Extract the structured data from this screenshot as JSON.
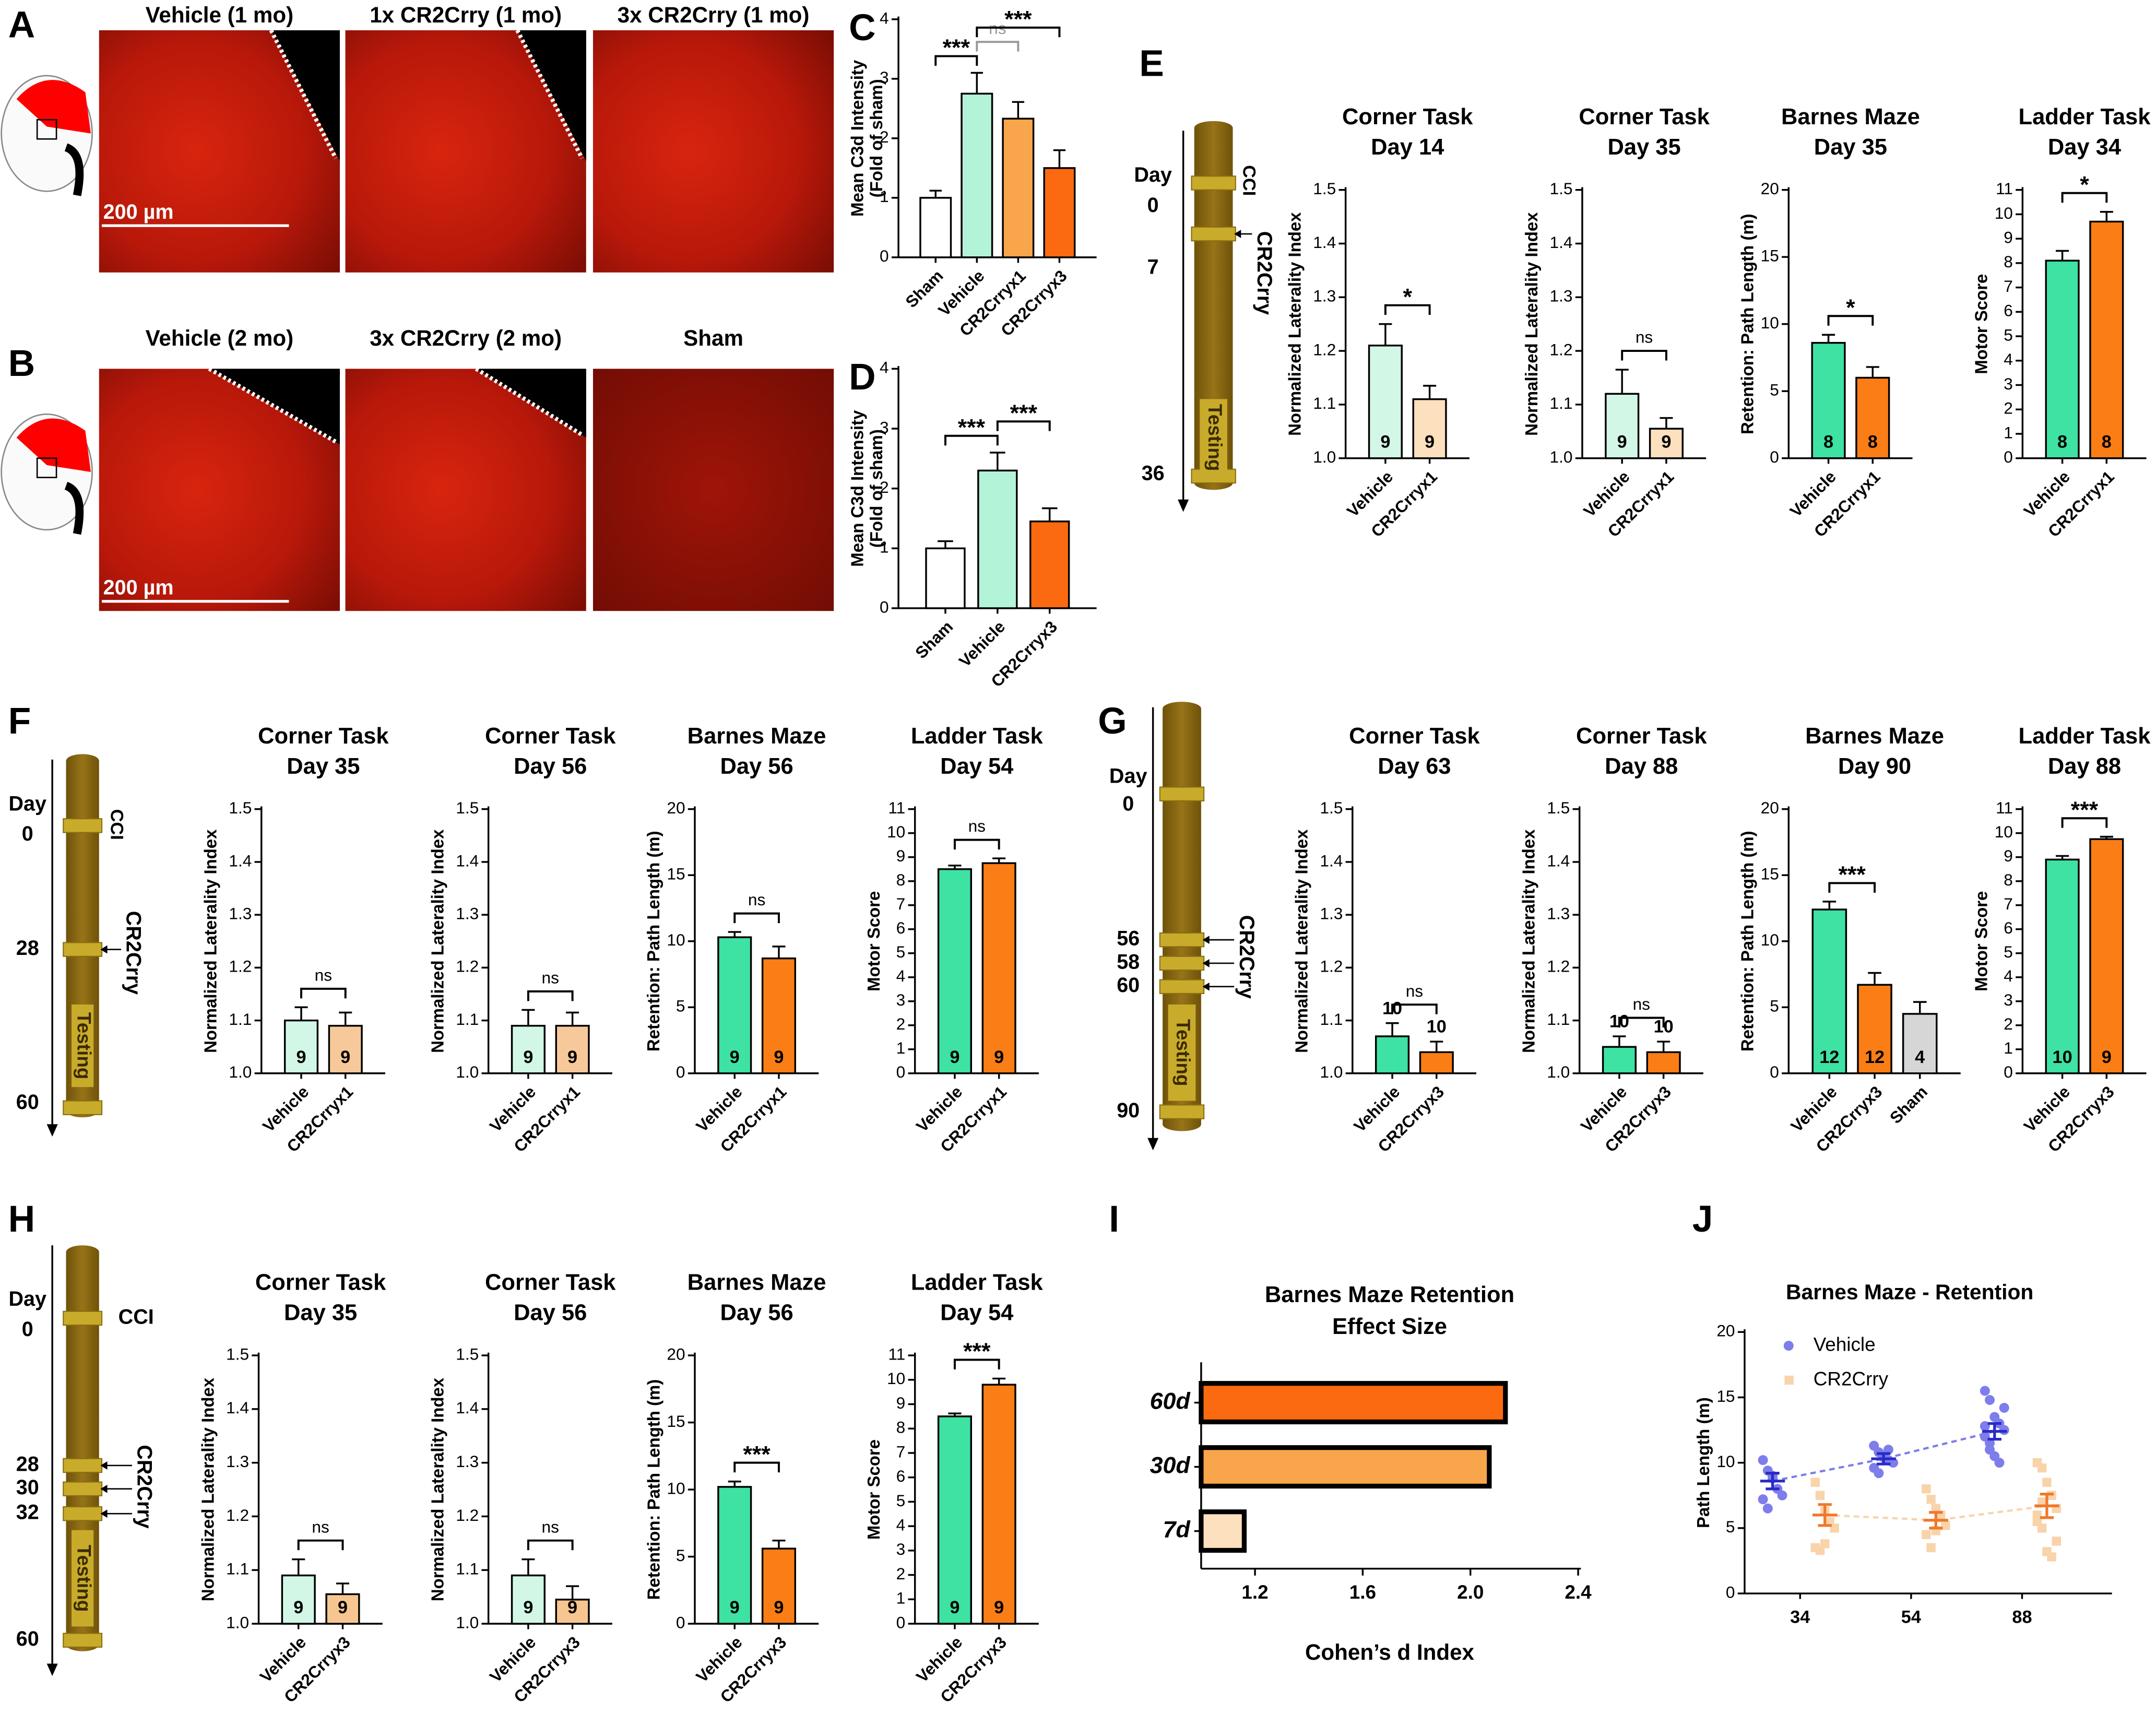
{
  "panel_labels": [
    "A",
    "B",
    "C",
    "D",
    "E",
    "F",
    "G",
    "H",
    "I",
    "J"
  ],
  "images": [
    {
      "labels": [
        "Vehicle (1 mo)",
        "1x CR2Crry (1 mo)",
        "3x CR2Crry (1 mo)"
      ],
      "scale_bar": "200 µm"
    },
    {
      "labels": [
        "Vehicle (2 mo)",
        "3x CR2Crry (2 mo)",
        "Sham"
      ],
      "scale_bar": "200 µm"
    }
  ],
  "timelines": [
    {
      "day_word": "Day",
      "days": [
        "0",
        "7",
        "36"
      ],
      "cci": "CCI",
      "treatment": "CR2Crry",
      "testing": "Testing"
    },
    {
      "day_word": "Day",
      "days": [
        "0",
        "28",
        "60"
      ],
      "cci": "CCI",
      "treatment": "CR2Crry",
      "testing": "Testing"
    },
    {
      "day_word": "Day",
      "days": [
        "0",
        "56",
        "58",
        "60",
        "90"
      ],
      "treatment": "CR2Crry",
      "testing": "Testing"
    },
    {
      "day_word": "Day",
      "days": [
        "0",
        "28",
        "30",
        "32",
        "60"
      ],
      "cci": "CCI",
      "treatment": "CR2Crry",
      "testing": "Testing"
    }
  ],
  "chart_data": [
    {
      "type": "bar",
      "ylabel": [
        "Mean C3d Intensity",
        "(Fold of sham)"
      ],
      "categories": [
        "Sham",
        "Vehicle",
        "CR2Crryx1",
        "CR2Crryx3"
      ],
      "values": [
        1.0,
        2.75,
        2.33,
        1.5
      ],
      "errors": [
        0.12,
        0.35,
        0.28,
        0.3
      ],
      "colors": [
        "#ffffff",
        "#b3f3d8",
        "#f9a54b",
        "#fb6a10"
      ],
      "comparisons": [
        {
          "pair": [
            0,
            1
          ],
          "label": "***"
        },
        {
          "pair": [
            1,
            2
          ],
          "label": "ns",
          "color": "#999999"
        },
        {
          "pair": [
            1,
            3
          ],
          "label": "***"
        }
      ],
      "ylim": [
        0,
        4
      ],
      "yticks": [
        0,
        1,
        2,
        3,
        4
      ]
    },
    {
      "type": "bar",
      "ylabel": [
        "Mean C3d Intensity",
        "(Fold of sham)"
      ],
      "categories": [
        "Sham",
        "Vehicle",
        "CR2Crryx3"
      ],
      "values": [
        1.0,
        2.3,
        1.45
      ],
      "errors": [
        0.12,
        0.3,
        0.22
      ],
      "colors": [
        "#ffffff",
        "#b3f3d8",
        "#fb6a10"
      ],
      "comparisons": [
        {
          "pair": [
            0,
            1
          ],
          "label": "***"
        },
        {
          "pair": [
            1,
            2
          ],
          "label": "***"
        }
      ],
      "ylim": [
        0,
        4
      ],
      "yticks": [
        0,
        1,
        2,
        3,
        4
      ]
    },
    {
      "type": "bar",
      "title": [
        "Corner Task",
        "Day 14"
      ],
      "ylabel": [
        "Normalized Laterality Index"
      ],
      "categories": [
        "Vehicle",
        "CR2Crryx1"
      ],
      "values": [
        1.21,
        1.11
      ],
      "errors": [
        0.04,
        0.025
      ],
      "n": [
        9,
        9
      ],
      "colors": [
        "#d2f7e6",
        "#fde0bd"
      ],
      "comparisons": [
        {
          "pair": [
            0,
            1
          ],
          "label": "*"
        }
      ],
      "ylim": [
        1,
        1.5
      ],
      "yticks": [
        {
          "value": 1,
          "label": "1.0"
        },
        1.1,
        1.2,
        1.3,
        1.4,
        1.5
      ]
    },
    {
      "type": "bar",
      "title": [
        "Corner Task",
        "Day 35"
      ],
      "ylabel": [
        "Normalized Laterality Index"
      ],
      "categories": [
        "Vehicle",
        "CR2Crryx1"
      ],
      "values": [
        1.12,
        1.055
      ],
      "errors": [
        0.045,
        0.02
      ],
      "n": [
        9,
        9
      ],
      "colors": [
        "#d2f7e6",
        "#fde0bd"
      ],
      "comparisons": [
        {
          "pair": [
            0,
            1
          ],
          "label": "ns"
        }
      ],
      "ylim": [
        1,
        1.5
      ],
      "yticks": [
        {
          "value": 1,
          "label": "1.0"
        },
        1.1,
        1.2,
        1.3,
        1.4,
        1.5
      ]
    },
    {
      "type": "bar",
      "title": [
        "Barnes Maze",
        "Day 35"
      ],
      "ylabel": [
        "Retention: Path Length (m)"
      ],
      "categories": [
        "Vehicle",
        "CR2Crryx1"
      ],
      "values": [
        8.6,
        6.0
      ],
      "errors": [
        0.6,
        0.8
      ],
      "n": [
        8,
        8
      ],
      "colors": [
        "#3ee2a3",
        "#fb7d16"
      ],
      "comparisons": [
        {
          "pair": [
            0,
            1
          ],
          "label": "*"
        }
      ],
      "ylim": [
        0,
        20
      ],
      "yticks": [
        0,
        5,
        10,
        15,
        20
      ]
    },
    {
      "type": "bar",
      "title": [
        "Ladder Task",
        "Day 34"
      ],
      "ylabel": [
        "Motor Score"
      ],
      "categories": [
        "Vehicle",
        "CR2Crryx1"
      ],
      "values": [
        8.1,
        9.7
      ],
      "errors": [
        0.4,
        0.4
      ],
      "n": [
        8,
        8
      ],
      "colors": [
        "#3ee2a3",
        "#fb7d16"
      ],
      "comparisons": [
        {
          "pair": [
            0,
            1
          ],
          "label": "*"
        }
      ],
      "ylim": [
        0,
        11
      ],
      "yticks": [
        0,
        1,
        2,
        3,
        4,
        5,
        6,
        7,
        8,
        9,
        10,
        11
      ]
    },
    {
      "type": "bar",
      "title": [
        "Corner Task",
        "Day 35"
      ],
      "ylabel": [
        "Normalized Laterality Index"
      ],
      "categories": [
        "Vehicle",
        "CR2Crryx1"
      ],
      "values": [
        1.1,
        1.09
      ],
      "errors": [
        0.025,
        0.025
      ],
      "n": [
        9,
        9
      ],
      "colors": [
        "#d2f7e6",
        "#f7c99a"
      ],
      "comparisons": [
        {
          "pair": [
            0,
            1
          ],
          "label": "ns"
        }
      ],
      "ylim": [
        1,
        1.5
      ],
      "yticks": [
        {
          "value": 1,
          "label": "1.0"
        },
        1.1,
        1.2,
        1.3,
        1.4,
        1.5
      ]
    },
    {
      "type": "bar",
      "title": [
        "Corner Task",
        "Day 56"
      ],
      "ylabel": [
        "Normalized Laterality Index"
      ],
      "categories": [
        "Vehicle",
        "CR2Crryx1"
      ],
      "values": [
        1.09,
        1.09
      ],
      "errors": [
        0.03,
        0.025
      ],
      "n": [
        9,
        9
      ],
      "colors": [
        "#d2f7e6",
        "#f7c99a"
      ],
      "comparisons": [
        {
          "pair": [
            0,
            1
          ],
          "label": "ns"
        }
      ],
      "ylim": [
        1,
        1.5
      ],
      "yticks": [
        {
          "value": 1,
          "label": "1.0"
        },
        1.1,
        1.2,
        1.3,
        1.4,
        1.5
      ]
    },
    {
      "type": "bar",
      "title": [
        "Barnes Maze",
        "Day 56"
      ],
      "ylabel": [
        "Retention: Path Length (m)"
      ],
      "categories": [
        "Vehicle",
        "CR2Crryx1"
      ],
      "values": [
        10.3,
        8.7
      ],
      "errors": [
        0.4,
        0.9
      ],
      "n": [
        9,
        9
      ],
      "colors": [
        "#3ee2a3",
        "#fb7d16"
      ],
      "comparisons": [
        {
          "pair": [
            0,
            1
          ],
          "label": "ns"
        }
      ],
      "ylim": [
        0,
        20
      ],
      "yticks": [
        0,
        5,
        10,
        15,
        20
      ]
    },
    {
      "type": "bar",
      "title": [
        "Ladder Task",
        "Day 54"
      ],
      "ylabel": [
        "Motor Score"
      ],
      "categories": [
        "Vehicle",
        "CR2Crryx1"
      ],
      "values": [
        8.5,
        8.75
      ],
      "errors": [
        0.15,
        0.2
      ],
      "n": [
        9,
        9
      ],
      "colors": [
        "#3ee2a3",
        "#fb7d16"
      ],
      "comparisons": [
        {
          "pair": [
            0,
            1
          ],
          "label": "ns"
        }
      ],
      "ylim": [
        0,
        11
      ],
      "yticks": [
        0,
        1,
        2,
        3,
        4,
        5,
        6,
        7,
        8,
        9,
        10,
        11
      ]
    },
    {
      "type": "bar",
      "title": [
        "Corner Task",
        "Day 63"
      ],
      "ylabel": [
        "Normalized Laterality Index"
      ],
      "categories": [
        "Vehicle",
        "CR2Crryx3"
      ],
      "values": [
        1.07,
        1.04
      ],
      "errors": [
        0.025,
        0.02
      ],
      "n": [
        10,
        10
      ],
      "n_position": "above",
      "colors": [
        "#3ee2a3",
        "#fb7d16"
      ],
      "comparisons": [
        {
          "pair": [
            0,
            1
          ],
          "label": "ns"
        }
      ],
      "ylim": [
        1,
        1.5
      ],
      "yticks": [
        {
          "value": 1,
          "label": "1.0"
        },
        1.1,
        1.2,
        1.3,
        1.4,
        1.5
      ]
    },
    {
      "type": "bar",
      "title": [
        "Corner Task",
        "Day 88"
      ],
      "ylabel": [
        "Normalized Laterality Index"
      ],
      "categories": [
        "Vehicle",
        "CR2Crryx3"
      ],
      "values": [
        1.05,
        1.04
      ],
      "errors": [
        0.02,
        0.02
      ],
      "n": [
        10,
        10
      ],
      "n_position": "above",
      "colors": [
        "#3ee2a3",
        "#fb7d16"
      ],
      "comparisons": [
        {
          "pair": [
            0,
            1
          ],
          "label": "ns"
        }
      ],
      "ylim": [
        1,
        1.5
      ],
      "yticks": [
        {
          "value": 1,
          "label": "1.0"
        },
        1.1,
        1.2,
        1.3,
        1.4,
        1.5
      ]
    },
    {
      "type": "bar",
      "title": [
        "Barnes Maze",
        "Day 90"
      ],
      "ylabel": [
        "Retention: Path Length (m)"
      ],
      "categories": [
        "Vehicle",
        "CR2Crryx3",
        "Sham"
      ],
      "values": [
        12.4,
        6.7,
        4.5
      ],
      "errors": [
        0.6,
        0.9,
        0.9
      ],
      "n": [
        12,
        12,
        4
      ],
      "colors": [
        "#3ee2a3",
        "#fb7d16",
        "#d6d6d6"
      ],
      "comparisons": [
        {
          "pair": [
            0,
            1
          ],
          "label": "***"
        }
      ],
      "ylim": [
        0,
        20
      ],
      "yticks": [
        0,
        5,
        10,
        15,
        20
      ]
    },
    {
      "type": "bar",
      "title": [
        "Ladder Task",
        "Day 88"
      ],
      "ylabel": [
        "Motor Score"
      ],
      "categories": [
        "Vehicle",
        "CR2Crryx3"
      ],
      "values": [
        8.9,
        9.75
      ],
      "errors": [
        0.15,
        0.1
      ],
      "n": [
        10,
        9
      ],
      "colors": [
        "#3ee2a3",
        "#fb7d16"
      ],
      "comparisons": [
        {
          "pair": [
            0,
            1
          ],
          "label": "***"
        }
      ],
      "ylim": [
        0,
        11
      ],
      "yticks": [
        0,
        1,
        2,
        3,
        4,
        5,
        6,
        7,
        8,
        9,
        10,
        11
      ]
    },
    {
      "type": "bar",
      "title": [
        "Corner Task",
        "Day 35"
      ],
      "ylabel": [
        "Normalized Laterality Index"
      ],
      "categories": [
        "Vehicle",
        "CR2Crryx3"
      ],
      "values": [
        1.09,
        1.055
      ],
      "errors": [
        0.03,
        0.02
      ],
      "n": [
        9,
        9
      ],
      "colors": [
        "#d2f7e6",
        "#f7c690"
      ],
      "comparisons": [
        {
          "pair": [
            0,
            1
          ],
          "label": "ns"
        }
      ],
      "ylim": [
        1,
        1.5
      ],
      "yticks": [
        {
          "value": 1,
          "label": "1.0"
        },
        1.1,
        1.2,
        1.3,
        1.4,
        1.5
      ]
    },
    {
      "type": "bar",
      "title": [
        "Corner Task",
        "Day 56"
      ],
      "ylabel": [
        "Normalized Laterality Index"
      ],
      "categories": [
        "Vehicle",
        "CR2Crryx3"
      ],
      "values": [
        1.09,
        1.045
      ],
      "errors": [
        0.03,
        0.025
      ],
      "n": [
        9,
        9
      ],
      "colors": [
        "#d2f7e6",
        "#f7c690"
      ],
      "comparisons": [
        {
          "pair": [
            0,
            1
          ],
          "label": "ns"
        }
      ],
      "ylim": [
        1,
        1.5
      ],
      "yticks": [
        {
          "value": 1,
          "label": "1.0"
        },
        1.1,
        1.2,
        1.3,
        1.4,
        1.5
      ]
    },
    {
      "type": "bar",
      "title": [
        "Barnes Maze",
        "Day 56"
      ],
      "ylabel": [
        "Retention: Path Length (m)"
      ],
      "categories": [
        "Vehicle",
        "CR2Crryx3"
      ],
      "values": [
        10.2,
        5.6
      ],
      "errors": [
        0.4,
        0.6
      ],
      "n": [
        9,
        9
      ],
      "colors": [
        "#3ee2a3",
        "#fb7d16"
      ],
      "comparisons": [
        {
          "pair": [
            0,
            1
          ],
          "label": "***"
        }
      ],
      "ylim": [
        0,
        20
      ],
      "yticks": [
        0,
        5,
        10,
        15,
        20
      ]
    },
    {
      "type": "bar",
      "title": [
        "Ladder Task",
        "Day 54"
      ],
      "ylabel": [
        "Motor Score"
      ],
      "categories": [
        "Vehicle",
        "CR2Crryx3"
      ],
      "values": [
        8.5,
        9.8
      ],
      "errors": [
        0.12,
        0.25
      ],
      "n": [
        9,
        9
      ],
      "colors": [
        "#3ee2a3",
        "#fb7d16"
      ],
      "comparisons": [
        {
          "pair": [
            0,
            1
          ],
          "label": "***"
        }
      ],
      "ylim": [
        0,
        11
      ],
      "yticks": [
        0,
        1,
        2,
        3,
        4,
        5,
        6,
        7,
        8,
        9,
        10,
        11
      ]
    },
    {
      "type": "hbar",
      "title": [
        "Barnes Maze Retention",
        "Effect Size"
      ],
      "xlabel": "Cohen’s d Index",
      "categories": [
        "60d",
        "30d",
        "7d"
      ],
      "values": [
        2.13,
        2.07,
        1.16
      ],
      "colors": [
        "#fb6a10",
        "#f9a54b",
        "#fde0bd"
      ],
      "xlim": [
        1,
        2.4
      ],
      "xticks": [
        1.2,
        1.6,
        {
          "value": 2,
          "label": "2.0"
        },
        2.4
      ]
    },
    {
      "type": "scatter",
      "title": "Barnes Maze - Retention",
      "ylabel": "Path Length (m)",
      "categories": [
        "34",
        "54",
        "88"
      ],
      "ylim": [
        0,
        20
      ],
      "yticks": [
        0,
        5,
        10,
        15,
        20
      ],
      "series": [
        {
          "name": "Vehicle",
          "color": "#7d7deb",
          "mean_color": "#2a2ac8",
          "points": [
            [
              10.2,
              9.4,
              8.8,
              8.0,
              7.5,
              7.2,
              6.5,
              9.0
            ],
            [
              11.3,
              10.8,
              10.5,
              10.2,
              10.0,
              9.6,
              9.2,
              10.4,
              11.0
            ],
            [
              15.5,
              14.8,
              13.5,
              13.0,
              12.5,
              12.0,
              11.5,
              10.5,
              10.0,
              14.2,
              12.8,
              11.0
            ]
          ],
          "means": [
            8.6,
            10.3,
            12.4
          ],
          "errors": [
            0.6,
            0.4,
            0.6
          ]
        },
        {
          "name": "CR2Crry",
          "color": "#f9d3aa",
          "mean_color": "#f0782a",
          "points": [
            [
              8.5,
              7.5,
              6.3,
              5.5,
              5.0,
              3.5,
              3.3,
              3.8
            ],
            [
              8.0,
              7.2,
              6.5,
              5.8,
              5.2,
              4.5,
              3.5,
              4.8,
              6.0
            ],
            [
              10.0,
              9.6,
              8.5,
              7.5,
              6.5,
              6.0,
              5.0,
              3.2,
              2.8,
              4.0,
              5.5,
              7.0
            ]
          ],
          "means": [
            6.0,
            5.6,
            6.7
          ],
          "errors": [
            0.8,
            0.6,
            0.9
          ]
        }
      ]
    }
  ]
}
